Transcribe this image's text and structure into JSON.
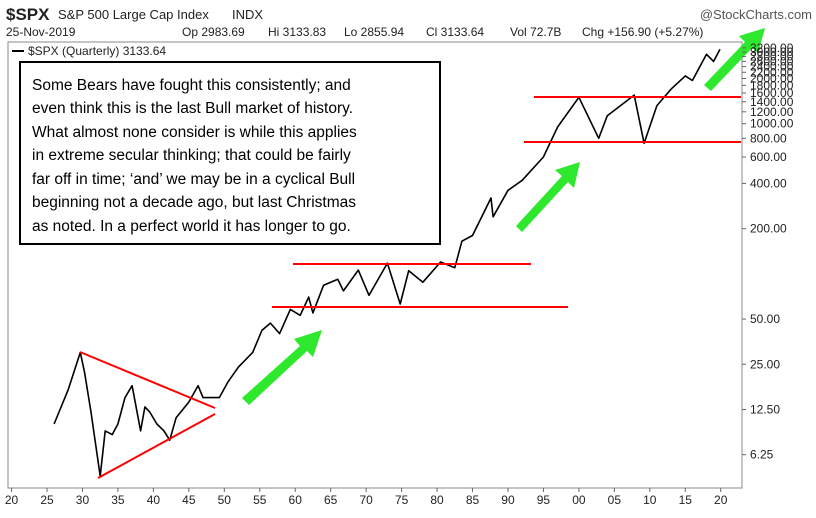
{
  "chart_data": {
    "type": "line",
    "title": "$SPX",
    "subtitle": "S&P 500 Large Cap Index",
    "exchange": "INDX",
    "source": "@StockCharts.com",
    "date": "25-Nov-2019",
    "stats": [
      "Op 2983.69",
      "Hi 3133.83",
      "Lo 2855.94",
      "Cl 3133.64",
      "Vol 72.7B",
      "Chg +156.90 (+5.27%)"
    ],
    "annotation": [
      "Some Bears have fought this consistently; and",
      "even think this is the last Bull market of history.",
      "What almost none consider is while this applies",
      "in extreme secular thinking; that could be fairly",
      "far off in time; ‘and’ we may be in a cyclical Bull",
      "beginning not a decade ago, but last Christmas",
      "as noted. In a perfect world it has longer to go."
    ],
    "log_scale": true,
    "xlim": [
      1919.5,
      2023
    ],
    "ylim": [
      3.75,
      3500
    ],
    "xticks": [
      {
        "value": 1920,
        "label": "20"
      },
      {
        "value": 1925,
        "label": "25"
      },
      {
        "value": 1930,
        "label": "30"
      },
      {
        "value": 1935,
        "label": "35"
      },
      {
        "value": 1940,
        "label": "40"
      },
      {
        "value": 1945,
        "label": "45"
      },
      {
        "value": 1950,
        "label": "50"
      },
      {
        "value": 1955,
        "label": "55"
      },
      {
        "value": 1960,
        "label": "60"
      },
      {
        "value": 1965,
        "label": "65"
      },
      {
        "value": 1970,
        "label": "70"
      },
      {
        "value": 1975,
        "label": "75"
      },
      {
        "value": 1980,
        "label": "80"
      },
      {
        "value": 1985,
        "label": "85"
      },
      {
        "value": 1990,
        "label": "90"
      },
      {
        "value": 1995,
        "label": "95"
      },
      {
        "value": 2000,
        "label": "00"
      },
      {
        "value": 2005,
        "label": "05"
      },
      {
        "value": 2010,
        "label": "10"
      },
      {
        "value": 2015,
        "label": "15"
      },
      {
        "value": 2020,
        "label": "20"
      }
    ],
    "yticks": [
      6.25,
      {
        "value": 12.5,
        "label": "12.50"
      },
      {
        "value": 25,
        "label": "25.00"
      },
      {
        "value": 50,
        "label": "50.00"
      },
      {
        "value": 200,
        "label": "200.00"
      },
      {
        "value": 400,
        "label": "400.00"
      },
      {
        "value": 600,
        "label": "600.00"
      },
      {
        "value": 800,
        "label": "800.00"
      },
      {
        "value": 1000,
        "label": "1000.00"
      },
      {
        "value": 1200,
        "label": "1200.00"
      },
      {
        "value": 1400,
        "label": "1400.00"
      },
      {
        "value": 1600,
        "label": "1600.00"
      },
      {
        "value": 1800,
        "label": "1800.00"
      },
      {
        "value": 2000,
        "label": "2000.00"
      },
      {
        "value": 2200,
        "label": "2200.00"
      },
      {
        "value": 2400,
        "label": "2400.00"
      },
      {
        "value": 2600,
        "label": "2600.00"
      },
      {
        "value": 2800,
        "label": "2800.00"
      },
      {
        "value": 3000,
        "label": "3000.00"
      },
      {
        "value": 3200,
        "label": "3200.00"
      }
    ],
    "series": [
      {
        "name": "$SPX (Quarterly) 3133.64",
        "color": "#000000",
        "x": [
          1926,
          1928,
          1929.7,
          1930.3,
          1931.2,
          1932.5,
          1933.2,
          1934.2,
          1935,
          1936,
          1937,
          1938.2,
          1938.8,
          1939.5,
          1940.5,
          1941.5,
          1942.3,
          1943.2,
          1945,
          1946.3,
          1947,
          1949.3,
          1950.5,
          1952,
          1954,
          1955.3,
          1956.5,
          1957.8,
          1959.3,
          1960.7,
          1961.9,
          1962.5,
          1964,
          1966,
          1966.8,
          1968.9,
          1970.4,
          1973,
          1974.8,
          1976,
          1978,
          1980.5,
          1982.5,
          1983.5,
          1985,
          1987.6,
          1987.9,
          1990,
          1992,
          1995,
          1997,
          2000,
          2002.8,
          2004,
          2007.8,
          2009.2,
          2011,
          2013,
          2015,
          2016,
          2018,
          2019,
          2019.9
        ],
        "values": [
          10,
          17,
          30,
          22,
          12,
          4.5,
          9,
          8.5,
          10,
          15,
          18,
          9,
          13,
          12,
          10,
          9,
          7.8,
          11,
          14,
          18,
          15,
          15,
          19,
          24,
          30,
          42,
          47,
          40,
          58,
          53,
          70,
          55,
          84,
          92,
          77,
          106,
          72,
          118,
          63,
          105,
          88,
          120,
          110,
          165,
          180,
          320,
          240,
          360,
          420,
          600,
          950,
          1500,
          800,
          1130,
          1550,
          740,
          1320,
          1700,
          2080,
          1940,
          2900,
          2600,
          3133.64
        ]
      }
    ]
  }
}
